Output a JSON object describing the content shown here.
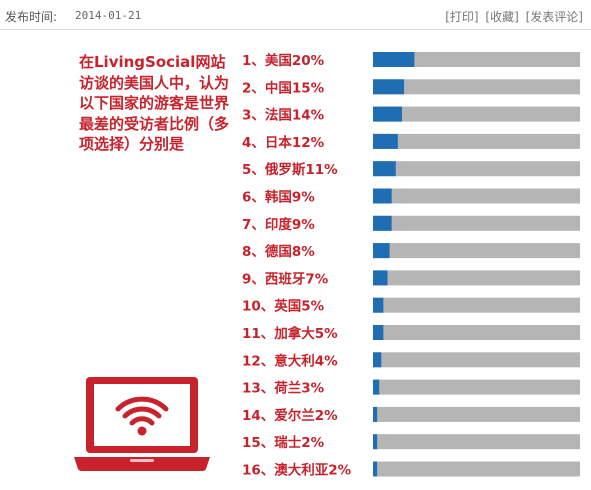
{
  "header": {
    "publish_label": "发布时间:",
    "publish_date": "2014-01-21",
    "links": [
      "[打印]",
      "[收藏]",
      "[发表评论]"
    ]
  },
  "intro_text": "在LivingSocial网站访谈的美国人中，认为以下国家的游客是世界最差的受访者比例（多项选择）分别是",
  "colors": {
    "label": "#c8232c",
    "bar_fill": "#1f6db2",
    "bar_track": "#b5b5b5",
    "laptop": "#c8232c"
  },
  "icons": {
    "laptop": "laptop-wifi-icon"
  },
  "chart_data": {
    "type": "bar",
    "orientation": "horizontal",
    "xlim": [
      0,
      100
    ],
    "labels": [
      "1、美国20%",
      "2、中国15%",
      "3、法国14%",
      "4、日本12%",
      "5、俄罗斯11%",
      "6、韩国9%",
      "7、印度9%",
      "8、德国8%",
      "9、西班牙7%",
      "10、英国5%",
      "11、加拿大5%",
      "12、意大利4%",
      "13、荷兰3%",
      "14、爱尔兰2%",
      "15、瑞士2%",
      "16、澳大利亚2%"
    ],
    "categories": [
      "美国",
      "中国",
      "法国",
      "日本",
      "俄罗斯",
      "韩国",
      "印度",
      "德国",
      "西班牙",
      "英国",
      "加拿大",
      "意大利",
      "荷兰",
      "爱尔兰",
      "瑞士",
      "澳大利亚"
    ],
    "values": [
      20,
      15,
      14,
      12,
      11,
      9,
      9,
      8,
      7,
      5,
      5,
      4,
      3,
      2,
      2,
      2
    ]
  }
}
